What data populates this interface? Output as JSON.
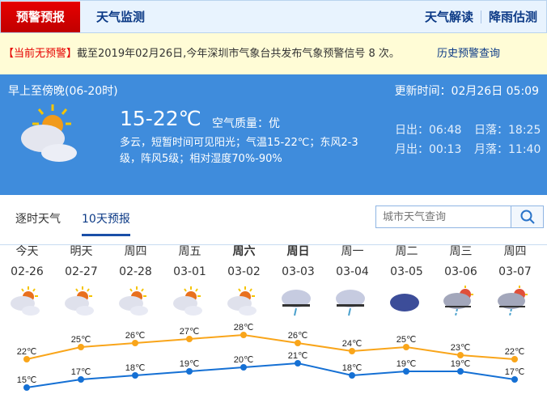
{
  "nav": {
    "active": "预警预报",
    "items": [
      "天气监测"
    ],
    "right": [
      "天气解读",
      "降雨估测"
    ]
  },
  "warning": {
    "status": "【当前无预警】",
    "text": "截至2019年02月26日,今年深圳市气象台共发布气象预警信号 8 次。",
    "history_link": "历史预警查询"
  },
  "current": {
    "period": "早上至傍晚(06-20时)",
    "update": "更新时间：02月26日 05:09",
    "temp": "15-22℃",
    "air": "空气质量：优",
    "desc1": "多云，短暂时间可见阳光；气温15-22℃；东风2-3",
    "desc2": "级，阵风5级；相对湿度70%-90%",
    "sunrise": "日出：06:48",
    "sunset": "日落：18:25",
    "moonrise": "月出：00:13",
    "moonset": "月落：11:40",
    "icon": "partly-cloudy-icon"
  },
  "tabs": [
    {
      "label": "逐时天气",
      "selected": false
    },
    {
      "label": "10天预报",
      "selected": true
    }
  ],
  "search": {
    "placeholder": "城市天气查询"
  },
  "forecast": [
    {
      "day": "今天",
      "date": "02-26",
      "icon": "partly-cloudy",
      "bold": false
    },
    {
      "day": "明天",
      "date": "02-27",
      "icon": "partly-cloudy",
      "bold": false
    },
    {
      "day": "周四",
      "date": "02-28",
      "icon": "partly-cloudy",
      "bold": false
    },
    {
      "day": "周五",
      "date": "03-01",
      "icon": "partly-cloudy",
      "bold": false
    },
    {
      "day": "周六",
      "date": "03-02",
      "icon": "partly-cloudy",
      "bold": true
    },
    {
      "day": "周日",
      "date": "03-03",
      "icon": "light-rain",
      "bold": true
    },
    {
      "day": "周一",
      "date": "03-04",
      "icon": "light-rain",
      "bold": false
    },
    {
      "day": "周二",
      "date": "03-05",
      "icon": "overcast",
      "bold": false
    },
    {
      "day": "周三",
      "date": "03-06",
      "icon": "sun-shower",
      "bold": false
    },
    {
      "day": "周四",
      "date": "03-07",
      "icon": "sun-shower",
      "bold": false
    }
  ],
  "chart_data": {
    "type": "line",
    "unit": "°C",
    "series": [
      {
        "key": "high",
        "color": "#f9a51a",
        "values": [
          22,
          25,
          26,
          27,
          28,
          26,
          24,
          25,
          23,
          22
        ]
      },
      {
        "key": "low",
        "color": "#1570d4",
        "values": [
          15,
          17,
          18,
          19,
          20,
          21,
          18,
          19,
          19,
          17
        ]
      }
    ]
  }
}
